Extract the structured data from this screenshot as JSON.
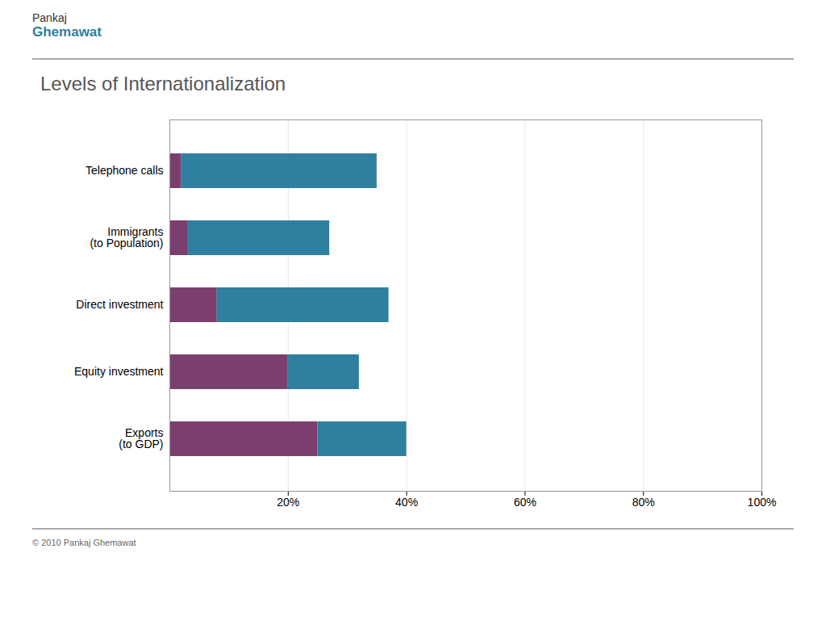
{
  "chart_data": {
    "type": "bar",
    "orientation": "horizontal",
    "stacked": true,
    "title": "Levels of Internationalization",
    "categories": [
      "Telephone calls",
      "Immigrants\n(to Population)",
      "Direct investment",
      "Equity investment",
      "Exports\n(to GDP)"
    ],
    "series": [
      {
        "color": "#7B3F6E",
        "values": [
          2,
          3,
          8,
          20,
          25
        ]
      },
      {
        "color": "#2E7FA0",
        "values": [
          33,
          24,
          29,
          12,
          15
        ]
      }
    ],
    "xlim": [
      0,
      100
    ],
    "xticks": [
      {
        "value": 20,
        "label": "20%"
      },
      {
        "value": 40,
        "label": "40%"
      },
      {
        "value": 60,
        "label": "60%"
      },
      {
        "value": 80,
        "label": "80%"
      },
      {
        "value": 100,
        "label": "100%"
      }
    ],
    "grid": true,
    "annotations": [
      "Pankaj",
      "Ghemawat",
      "© 2010 Pankaj Ghemawat"
    ]
  }
}
